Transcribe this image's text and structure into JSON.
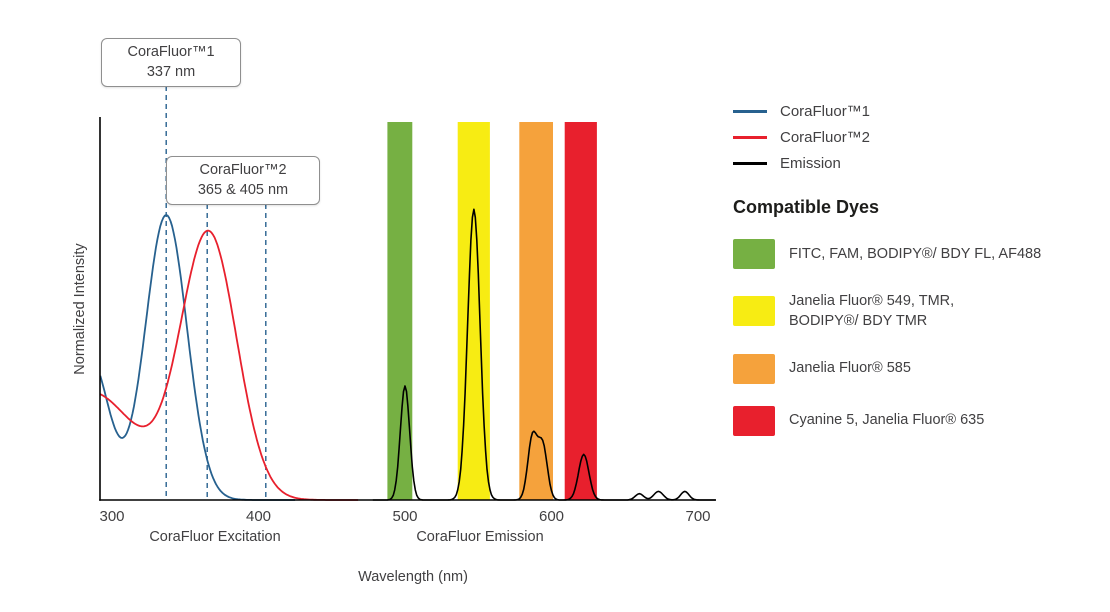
{
  "annotations": [
    {
      "title": "CoraFluor™1",
      "subtitle": "337 nm",
      "markers_nm": [
        337
      ]
    },
    {
      "title": "CoraFluor™2",
      "subtitle": "365 & 405 nm",
      "markers_nm": [
        365,
        405
      ]
    }
  ],
  "legend": [
    {
      "label": "CoraFluor™1",
      "color": "#27618F"
    },
    {
      "label": "CoraFluor™2",
      "color": "#E8202D"
    },
    {
      "label": "Emission",
      "color": "#000000"
    }
  ],
  "compatible_dyes": {
    "heading": "Compatible Dyes",
    "items": [
      {
        "color": "#76B043",
        "label": "FITC, FAM, BODIPY®/ BDY FL, AF488"
      },
      {
        "color": "#F7EC13",
        "label": "Janelia Fluor® 549, TMR,\nBODIPY®/ BDY TMR"
      },
      {
        "color": "#F5A23C",
        "label": "Janelia Fluor® 585"
      },
      {
        "color": "#E8202D",
        "label": "Cyanine 5, Janelia Fluor® 635"
      }
    ]
  },
  "chart_data": {
    "type": "line",
    "title": "",
    "xlabel": "Wavelength (nm)",
    "ylabel": "Normalized Intensity",
    "excitation_region_label": "CoraFluor Excitation",
    "emission_region_label": "CoraFluor Emission",
    "x_ticks": [
      300,
      400,
      500,
      600,
      700
    ],
    "x_range_nm": [
      292,
      712
    ],
    "ylim": [
      0,
      1.05
    ],
    "grid": false,
    "legend_position": "right",
    "marker_color": "#27618F",
    "bands": [
      {
        "id": "green",
        "range_nm": [
          488,
          505
        ],
        "color": "#76B043",
        "dyes": "FITC, FAM, BODIPY®/ BDY FL, AF488"
      },
      {
        "id": "yellow",
        "range_nm": [
          536,
          558
        ],
        "color": "#F7EC13",
        "dyes": "Janelia Fluor® 549, TMR, BODIPY®/ BDY TMR"
      },
      {
        "id": "orange",
        "range_nm": [
          578,
          601
        ],
        "color": "#F5A23C",
        "dyes": "Janelia Fluor® 585"
      },
      {
        "id": "red",
        "range_nm": [
          609,
          631
        ],
        "color": "#E8202D",
        "dyes": "Cyanine 5, Janelia Fluor® 635"
      }
    ],
    "series": [
      {
        "id": "corafluor1-excitation",
        "name": "CoraFluor™1",
        "color": "#27618F",
        "stroke_width": 1.8,
        "domain": [
          292,
          425
        ],
        "peaks_nm": [
          337
        ],
        "gaussians": [
          [
            285,
            0.5,
            18
          ],
          [
            337,
            1.0,
            20
          ]
        ]
      },
      {
        "id": "corafluor2-excitation",
        "name": "CoraFluor™2",
        "color": "#E8202D",
        "stroke_width": 1.8,
        "domain": [
          292,
          468
        ],
        "peaks_nm": [
          365,
          405
        ],
        "gaussians": [
          [
            285,
            0.38,
            45
          ],
          [
            366,
            0.93,
            27
          ]
        ]
      },
      {
        "id": "emission",
        "name": "Emission",
        "color": "#000000",
        "stroke_width": 1.6,
        "domain": [
          478,
          712
        ],
        "peaks_nm": [
          500,
          547,
          590,
          622
        ],
        "gaussians": [
          [
            500,
            0.4,
            4.5
          ],
          [
            547,
            1.02,
            6
          ],
          [
            587,
            0.22,
            4.5
          ],
          [
            594,
            0.19,
            4.5
          ],
          [
            622,
            0.16,
            5
          ],
          [
            660,
            0.022,
            4
          ],
          [
            673,
            0.03,
            4.5
          ],
          [
            691,
            0.03,
            4
          ]
        ]
      }
    ]
  }
}
